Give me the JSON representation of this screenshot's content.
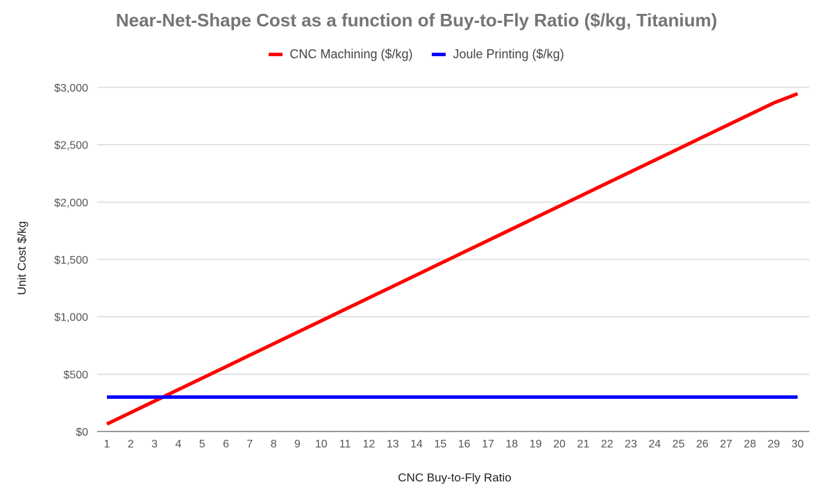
{
  "chart_data": {
    "type": "line",
    "title": "Near-Net-Shape Cost as a function of Buy-to-Fly Ratio ($/kg, Titanium)",
    "xlabel": "CNC Buy-to-Fly Ratio",
    "ylabel": "Unit Cost $/kg",
    "x": [
      1,
      2,
      3,
      4,
      5,
      6,
      7,
      8,
      9,
      10,
      11,
      12,
      13,
      14,
      15,
      16,
      17,
      18,
      19,
      20,
      21,
      22,
      23,
      24,
      25,
      26,
      27,
      28,
      29,
      30
    ],
    "ylim": [
      0,
      3000
    ],
    "yticks": [
      0,
      500,
      1000,
      1500,
      2000,
      2500,
      3000
    ],
    "ytick_labels": [
      "$0",
      "$500",
      "$1,000",
      "$1,500",
      "$2,000",
      "$2,500",
      "$3,000"
    ],
    "grid": true,
    "legend_position": "top-center",
    "series": [
      {
        "name": "CNC Machining ($/kg)",
        "color": "#ff0000",
        "values": [
          65,
          165,
          265,
          365,
          465,
          565,
          665,
          765,
          865,
          965,
          1065,
          1165,
          1265,
          1365,
          1465,
          1565,
          1665,
          1765,
          1865,
          1965,
          2065,
          2165,
          2265,
          2365,
          2465,
          2565,
          2665,
          2765,
          2865,
          2945
        ]
      },
      {
        "name": "Joule Printing ($/kg)",
        "color": "#0000ff",
        "values": [
          300,
          300,
          300,
          300,
          300,
          300,
          300,
          300,
          300,
          300,
          300,
          300,
          300,
          300,
          300,
          300,
          300,
          300,
          300,
          300,
          300,
          300,
          300,
          300,
          300,
          300,
          300,
          300,
          300,
          300
        ]
      }
    ]
  }
}
